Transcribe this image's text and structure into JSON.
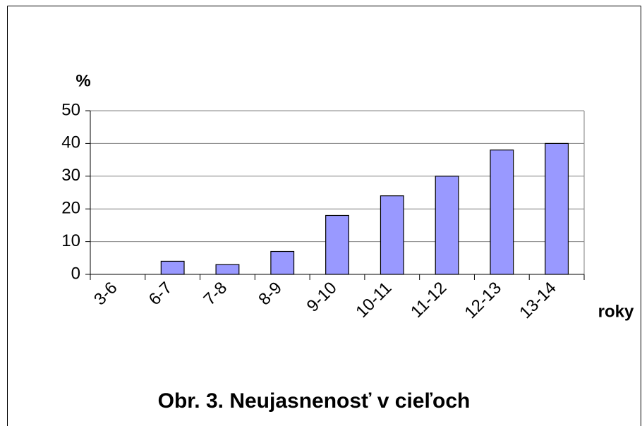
{
  "chart_data": {
    "type": "bar",
    "title": "Obr. 3. Neujasnenosť v cieľoch",
    "y_label": "%",
    "x_label": "roky",
    "categories": [
      "3-6",
      "6-7",
      "7-8",
      "8-9",
      "9-10",
      "10-11",
      "11-12",
      "12-13",
      "13-14"
    ],
    "values": [
      0,
      4,
      3,
      7,
      18,
      24,
      30,
      38,
      40
    ],
    "color": "#9999ff",
    "ylim": [
      0,
      50
    ],
    "yticks": [
      0,
      10,
      20,
      30,
      40,
      50
    ],
    "grid": true
  }
}
